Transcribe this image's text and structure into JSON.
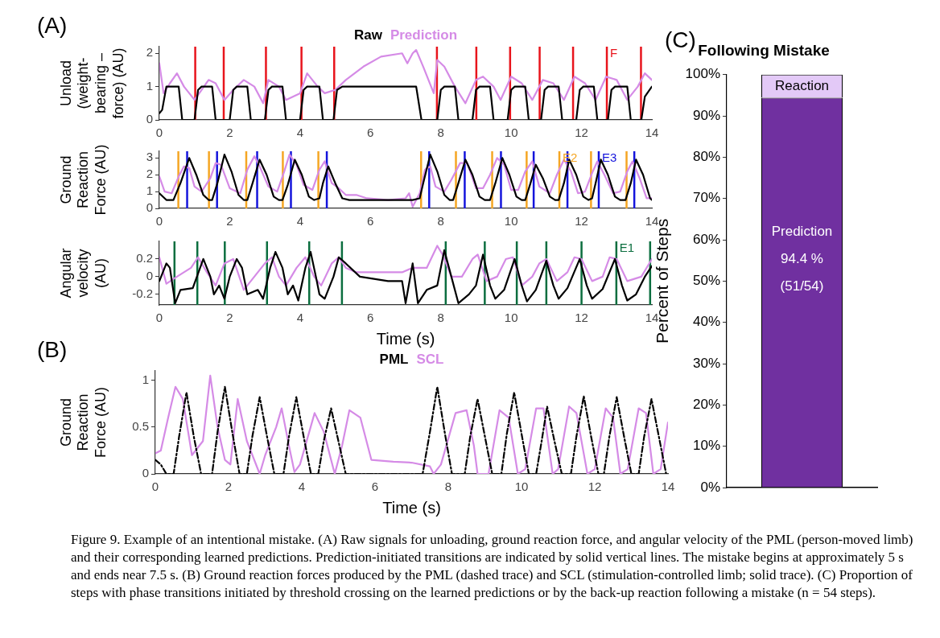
{
  "chart_data": [
    {
      "type": "line",
      "ylabel": "Unload (weight-bearing – force) (AU)",
      "xlim": [
        0,
        14
      ],
      "xticks": [
        0,
        2,
        4,
        6,
        8,
        10,
        12,
        14
      ],
      "ylim": [
        0,
        2.2
      ],
      "yticks": [
        0,
        1,
        2
      ],
      "legend": "top",
      "annotations": [
        "(A)",
        "F"
      ],
      "series": [
        {
          "name": "Raw",
          "color": "#000000",
          "x": [
            0,
            0.08,
            0.2,
            0.55,
            0.65,
            1.0,
            1.1,
            1.2,
            1.5,
            1.6,
            2.0,
            2.1,
            2.2,
            2.5,
            2.6,
            3.0,
            3.1,
            3.2,
            3.5,
            3.6,
            4.0,
            4.1,
            4.2,
            4.55,
            4.65,
            4.95,
            5.05,
            5.2,
            7.3,
            7.45,
            7.9,
            8.0,
            8.1,
            8.4,
            8.5,
            8.9,
            9.0,
            9.1,
            9.4,
            9.5,
            9.9,
            10.0,
            10.1,
            10.4,
            10.5,
            10.85,
            10.95,
            11.05,
            11.35,
            11.45,
            11.85,
            11.95,
            12.05,
            12.35,
            12.45,
            12.75,
            12.85,
            12.95,
            13.3,
            13.4,
            13.7,
            13.8,
            14
          ],
          "values": [
            0.2,
            0.3,
            1,
            1,
            0,
            0,
            0.9,
            1,
            1,
            0,
            0,
            0.9,
            1,
            1,
            0,
            0,
            0.9,
            1,
            1,
            0,
            0,
            0.9,
            1,
            1,
            0,
            0,
            0.9,
            1,
            1,
            0,
            0,
            0.9,
            1,
            1,
            0,
            0,
            0.9,
            1,
            1,
            0,
            0,
            0.9,
            1,
            1,
            0,
            0,
            0.9,
            1,
            1,
            0,
            0,
            0.9,
            1,
            1,
            0,
            0,
            0.9,
            1,
            1,
            0,
            0,
            0.7,
            1
          ]
        },
        {
          "name": "Prediction",
          "color": "#d58be6",
          "x": [
            0,
            0.12,
            0.3,
            0.5,
            0.7,
            1.0,
            1.2,
            1.4,
            1.6,
            1.85,
            2.1,
            2.4,
            2.7,
            2.95,
            3.1,
            3.4,
            3.6,
            4.0,
            4.2,
            4.5,
            4.7,
            5.0,
            5.3,
            5.8,
            6.3,
            6.9,
            7.05,
            7.2,
            7.3,
            7.5,
            7.8,
            7.9,
            8.1,
            8.4,
            8.7,
            9.0,
            9.2,
            9.5,
            9.7,
            10.0,
            10.3,
            10.6,
            10.9,
            11.2,
            11.5,
            11.8,
            12.1,
            12.4,
            12.7,
            13.0,
            13.3,
            13.6,
            13.8,
            14
          ],
          "values": [
            1.7,
            0.8,
            1.1,
            1.4,
            1.0,
            0.6,
            0.9,
            1.2,
            1.1,
            0.6,
            0.9,
            1.2,
            1.0,
            0.5,
            1.2,
            1.0,
            0.6,
            0.8,
            1.4,
            1.0,
            0.8,
            0.9,
            1.2,
            1.6,
            1.9,
            2.0,
            1.7,
            2.0,
            2.1,
            1.6,
            0.8,
            1.8,
            1.6,
            1.0,
            0.5,
            1.2,
            1.3,
            1.0,
            0.6,
            1.3,
            1.1,
            0.6,
            1.2,
            1.1,
            0.6,
            1.3,
            1.1,
            0.6,
            1.3,
            1.2,
            0.6,
            1.0,
            1.4,
            1.2
          ]
        }
      ],
      "ref_lines": [
        {
          "axis": "x",
          "value": 1.02,
          "color": "#e8141c"
        },
        {
          "axis": "x",
          "value": 1.83,
          "color": "#e8141c"
        },
        {
          "axis": "x",
          "value": 3.03,
          "color": "#e8141c"
        },
        {
          "axis": "x",
          "value": 4.04,
          "color": "#e8141c"
        },
        {
          "axis": "x",
          "value": 4.97,
          "color": "#e8141c"
        },
        {
          "axis": "x",
          "value": 7.89,
          "color": "#e8141c"
        },
        {
          "axis": "x",
          "value": 9.01,
          "color": "#e8141c"
        },
        {
          "axis": "x",
          "value": 9.97,
          "color": "#e8141c"
        },
        {
          "axis": "x",
          "value": 10.81,
          "color": "#e8141c"
        },
        {
          "axis": "x",
          "value": 11.76,
          "color": "#e8141c"
        },
        {
          "axis": "x",
          "value": 12.72,
          "color": "#e8141c"
        },
        {
          "axis": "x",
          "value": 13.69,
          "color": "#e8141c"
        }
      ]
    },
    {
      "type": "line",
      "ylabel": "Ground Reaction Force (AU)",
      "xlim": [
        0,
        14
      ],
      "xticks": [
        0,
        2,
        4,
        6,
        8,
        10,
        12,
        14
      ],
      "ylim": [
        0,
        3.4
      ],
      "yticks": [
        0,
        1,
        2,
        3
      ],
      "annotations": [
        "E2",
        "E3"
      ],
      "series": [
        {
          "color": "#000000",
          "x": [
            0,
            0.2,
            0.4,
            0.6,
            0.85,
            1.05,
            1.25,
            1.4,
            1.5,
            1.65,
            1.85,
            2.05,
            2.25,
            2.4,
            2.5,
            2.65,
            2.85,
            3.05,
            3.25,
            3.4,
            3.5,
            3.65,
            3.85,
            4.05,
            4.25,
            4.4,
            4.55,
            4.65,
            4.8,
            5.0,
            5.2,
            5.4,
            7.2,
            7.4,
            7.5,
            7.7,
            7.9,
            8.1,
            8.25,
            8.35,
            8.5,
            8.7,
            8.9,
            9.1,
            9.25,
            9.4,
            9.55,
            9.75,
            9.95,
            10.15,
            10.3,
            10.4,
            10.55,
            10.7,
            10.9,
            11.1,
            11.25,
            11.35,
            11.5,
            11.65,
            11.85,
            12.05,
            12.2,
            12.3,
            12.4,
            12.55,
            12.75,
            12.95,
            13.1,
            13.25,
            13.4,
            13.55,
            13.75,
            13.95,
            14
          ],
          "values": [
            0.9,
            0.5,
            0.5,
            1.5,
            3.0,
            2.0,
            0.8,
            0.5,
            0.5,
            1.5,
            3.2,
            2.2,
            0.8,
            0.5,
            0.5,
            1.5,
            2.9,
            2.0,
            0.7,
            0.5,
            0.5,
            1.4,
            2.9,
            2.0,
            0.7,
            0.5,
            0.6,
            1.5,
            2.5,
            1.5,
            0.6,
            0.5,
            0.5,
            0.6,
            1.5,
            3.2,
            2.2,
            0.8,
            0.5,
            0.5,
            1.5,
            2.9,
            2.0,
            0.7,
            0.5,
            0.5,
            1.5,
            3.0,
            2.0,
            0.7,
            0.5,
            0.5,
            1.5,
            2.6,
            1.8,
            0.7,
            0.5,
            0.5,
            1.5,
            2.9,
            2.0,
            0.7,
            0.5,
            0.6,
            1.5,
            2.9,
            2.0,
            0.7,
            0.5,
            0.5,
            1.5,
            2.9,
            2.0,
            0.6,
            0.5
          ]
        },
        {
          "color": "#d58be6",
          "x": [
            0,
            0.15,
            0.35,
            0.55,
            0.7,
            0.85,
            1.0,
            1.2,
            1.45,
            1.6,
            1.75,
            2.0,
            2.3,
            2.5,
            2.7,
            2.85,
            3.1,
            3.35,
            3.55,
            3.7,
            3.9,
            4.1,
            4.35,
            4.55,
            4.7,
            4.9,
            5.1,
            5.3,
            5.6,
            5.9,
            6.5,
            7.0,
            7.1,
            7.2,
            7.4,
            7.55,
            7.7,
            7.85,
            8.1,
            8.3,
            8.55,
            8.75,
            9.0,
            9.2,
            9.4,
            9.6,
            9.8,
            10.0,
            10.2,
            10.4,
            10.6,
            10.8,
            11.1,
            11.3,
            11.5,
            11.7,
            11.9,
            12.1,
            12.3,
            12.45,
            12.65,
            12.9,
            13.1,
            13.3,
            13.45,
            13.65,
            13.85,
            14
          ],
          "values": [
            1.9,
            1.0,
            0.9,
            1.9,
            2.5,
            2.4,
            1.3,
            1.0,
            1.8,
            2.7,
            2.6,
            1.2,
            0.9,
            2.3,
            3.1,
            2.5,
            1.3,
            1.0,
            2.2,
            3.2,
            2.6,
            1.4,
            1.1,
            2.3,
            2.8,
            1.5,
            1.2,
            0.8,
            0.8,
            0.6,
            0.5,
            0.6,
            0.9,
            0.1,
            0.9,
            2.3,
            2.5,
            1.3,
            1.0,
            1.7,
            2.7,
            2.7,
            1.2,
            1.2,
            2.0,
            3.0,
            2.6,
            1.1,
            1.1,
            2.2,
            2.8,
            1.3,
            0.9,
            2.0,
            2.9,
            2.2,
            0.9,
            1.0,
            2.1,
            2.8,
            2.0,
            0.9,
            1.0,
            2.2,
            2.8,
            1.8,
            0.6,
            0.6
          ]
        }
      ],
      "ref_lines": [
        {
          "axis": "x",
          "value": 0.54,
          "color": "#f5a623"
        },
        {
          "axis": "x",
          "value": 1.41,
          "color": "#f5a623"
        },
        {
          "axis": "x",
          "value": 2.47,
          "color": "#f5a623"
        },
        {
          "axis": "x",
          "value": 3.51,
          "color": "#f5a623"
        },
        {
          "axis": "x",
          "value": 4.52,
          "color": "#f5a623"
        },
        {
          "axis": "x",
          "value": 7.44,
          "color": "#f5a623"
        },
        {
          "axis": "x",
          "value": 8.43,
          "color": "#f5a623"
        },
        {
          "axis": "x",
          "value": 9.46,
          "color": "#f5a623"
        },
        {
          "axis": "x",
          "value": 10.44,
          "color": "#f5a623"
        },
        {
          "axis": "x",
          "value": 11.37,
          "color": "#f5a623"
        },
        {
          "axis": "x",
          "value": 12.27,
          "color": "#f5a623"
        },
        {
          "axis": "x",
          "value": 13.28,
          "color": "#f5a623"
        },
        {
          "axis": "x",
          "value": 0.79,
          "color": "#1414dc"
        },
        {
          "axis": "x",
          "value": 1.64,
          "color": "#1414dc"
        },
        {
          "axis": "x",
          "value": 2.78,
          "color": "#1414dc"
        },
        {
          "axis": "x",
          "value": 3.74,
          "color": "#1414dc"
        },
        {
          "axis": "x",
          "value": 4.76,
          "color": "#1414dc"
        },
        {
          "axis": "x",
          "value": 7.67,
          "color": "#1414dc"
        },
        {
          "axis": "x",
          "value": 8.68,
          "color": "#1414dc"
        },
        {
          "axis": "x",
          "value": 9.71,
          "color": "#1414dc"
        },
        {
          "axis": "x",
          "value": 10.64,
          "color": "#1414dc"
        },
        {
          "axis": "x",
          "value": 11.6,
          "color": "#1414dc"
        },
        {
          "axis": "x",
          "value": 12.49,
          "color": "#1414dc"
        },
        {
          "axis": "x",
          "value": 13.5,
          "color": "#1414dc"
        }
      ]
    },
    {
      "type": "line",
      "ylabel": "Angular velocity (AU)",
      "xlabel": "Time (s)",
      "xlim": [
        0,
        14
      ],
      "xticks": [
        0,
        2,
        4,
        6,
        8,
        10,
        12,
        14
      ],
      "ylim": [
        -0.32,
        0.4
      ],
      "yticks": [
        -0.2,
        0,
        0.2
      ],
      "annotations": [
        "E1"
      ],
      "series": [
        {
          "color": "#000000",
          "x": [
            0,
            0.2,
            0.3,
            0.45,
            0.6,
            0.95,
            1.25,
            1.45,
            1.55,
            1.7,
            1.85,
            2.0,
            2.2,
            2.35,
            2.5,
            2.8,
            2.95,
            3.15,
            3.3,
            3.5,
            3.65,
            3.8,
            3.95,
            4.15,
            4.3,
            4.45,
            4.55,
            4.7,
            4.95,
            5.1,
            5.3,
            5.7,
            6.5,
            6.9,
            7.0,
            7.2,
            7.35,
            7.6,
            7.9,
            8.1,
            8.3,
            8.5,
            8.8,
            9.0,
            9.2,
            9.4,
            9.55,
            9.8,
            10.1,
            10.3,
            10.45,
            10.7,
            11.0,
            11.2,
            11.35,
            11.6,
            11.95,
            12.15,
            12.3,
            12.6,
            12.95,
            13.15,
            13.3,
            13.55,
            13.8,
            14
          ],
          "values": [
            -0.05,
            0.15,
            0.1,
            -0.3,
            -0.15,
            -0.13,
            0.2,
            0.0,
            -0.2,
            -0.1,
            -0.25,
            0.0,
            0.2,
            0.1,
            -0.2,
            -0.15,
            -0.25,
            0.1,
            0.28,
            0.1,
            -0.2,
            -0.1,
            -0.27,
            0.1,
            0.28,
            0.0,
            -0.2,
            -0.25,
            0.0,
            0.22,
            0.15,
            0.0,
            -0.05,
            -0.05,
            -0.3,
            0.15,
            -0.3,
            -0.15,
            -0.1,
            0.3,
            0.0,
            -0.3,
            -0.2,
            -0.1,
            0.25,
            -0.1,
            -0.25,
            -0.15,
            0.2,
            -0.1,
            -0.28,
            -0.15,
            0.18,
            -0.1,
            -0.25,
            -0.13,
            0.2,
            -0.1,
            -0.25,
            -0.14,
            0.2,
            -0.1,
            -0.27,
            -0.2,
            0.0,
            0.12
          ]
        },
        {
          "color": "#d58be6",
          "x": [
            0,
            0.2,
            0.5,
            0.9,
            1.1,
            1.35,
            1.6,
            1.85,
            2.1,
            2.4,
            2.7,
            3.0,
            3.2,
            3.4,
            3.6,
            3.9,
            4.15,
            4.4,
            4.6,
            4.9,
            5.1,
            5.3,
            5.6,
            6.9,
            7.2,
            7.6,
            7.9,
            8.05,
            8.3,
            8.6,
            8.9,
            9.05,
            9.3,
            9.6,
            9.85,
            10.05,
            10.3,
            10.6,
            10.8,
            11.0,
            11.3,
            11.6,
            11.8,
            12.0,
            12.3,
            12.6,
            12.8,
            13.0,
            13.3,
            13.7,
            14
          ],
          "values": [
            0.22,
            -0.08,
            0.0,
            0.1,
            0.22,
            0.05,
            -0.1,
            0.15,
            0.2,
            -0.15,
            0.0,
            0.15,
            0.22,
            0.0,
            -0.1,
            0.1,
            0.22,
            0.0,
            -0.1,
            0.15,
            0.22,
            0.1,
            0.05,
            0.05,
            0.1,
            0.1,
            0.35,
            0.25,
            0.0,
            0.0,
            0.2,
            0.25,
            -0.05,
            0.0,
            0.2,
            0.22,
            -0.1,
            0.0,
            0.15,
            0.2,
            -0.05,
            0.05,
            0.22,
            0.2,
            -0.05,
            0.0,
            0.22,
            0.2,
            -0.05,
            0.0,
            0.2
          ]
        }
      ],
      "ref_lines": [
        {
          "axis": "x",
          "value": 0.43,
          "color": "#0b6e3f"
        },
        {
          "axis": "x",
          "value": 1.08,
          "color": "#0b6e3f"
        },
        {
          "axis": "x",
          "value": 1.86,
          "color": "#0b6e3f"
        },
        {
          "axis": "x",
          "value": 3.06,
          "color": "#0b6e3f"
        },
        {
          "axis": "x",
          "value": 4.26,
          "color": "#0b6e3f"
        },
        {
          "axis": "x",
          "value": 5.19,
          "color": "#0b6e3f"
        },
        {
          "axis": "x",
          "value": 8.14,
          "color": "#0b6e3f"
        },
        {
          "axis": "x",
          "value": 9.25,
          "color": "#0b6e3f"
        },
        {
          "axis": "x",
          "value": 10.16,
          "color": "#0b6e3f"
        },
        {
          "axis": "x",
          "value": 11.0,
          "color": "#0b6e3f"
        },
        {
          "axis": "x",
          "value": 12.0,
          "color": "#0b6e3f"
        },
        {
          "axis": "x",
          "value": 12.99,
          "color": "#0b6e3f"
        },
        {
          "axis": "x",
          "value": 13.95,
          "color": "#0b6e3f"
        }
      ]
    },
    {
      "type": "line",
      "ylabel": "Ground Reaction Force (AU)",
      "xlabel": "Time (s)",
      "xlim": [
        0,
        14
      ],
      "xticks": [
        0,
        2,
        4,
        6,
        8,
        10,
        12,
        14
      ],
      "ylim": [
        0,
        1.1
      ],
      "yticks": [
        0,
        0.5,
        1
      ],
      "legend": "top",
      "annotations": [
        "(B)"
      ],
      "series": [
        {
          "name": "PML",
          "color": "#000000",
          "line_style": "dashed",
          "x": [
            0,
            0.15,
            0.3,
            0.5,
            0.65,
            0.85,
            1.05,
            1.25,
            1.55,
            1.7,
            1.9,
            2.1,
            2.3,
            2.5,
            2.65,
            2.85,
            3.05,
            3.25,
            3.5,
            3.65,
            3.85,
            4.05,
            4.25,
            4.45,
            4.6,
            4.8,
            5.0,
            5.2,
            7.3,
            7.5,
            7.7,
            7.9,
            8.1,
            8.45,
            8.6,
            8.8,
            9.0,
            9.2,
            9.45,
            9.6,
            9.8,
            10.0,
            10.2,
            10.4,
            10.55,
            10.7,
            10.9,
            11.1,
            11.35,
            11.5,
            11.7,
            11.9,
            12.1,
            12.25,
            12.4,
            12.6,
            12.8,
            13.0,
            13.2,
            13.35,
            13.55,
            13.75,
            13.95,
            14
          ],
          "values": [
            0.15,
            0.1,
            0.0,
            0.0,
            0.4,
            0.87,
            0.4,
            0.0,
            0.0,
            0.45,
            0.93,
            0.45,
            0.0,
            0.0,
            0.4,
            0.82,
            0.4,
            0.0,
            0.0,
            0.4,
            0.82,
            0.4,
            0.0,
            0.0,
            0.35,
            0.7,
            0.35,
            0.0,
            0.0,
            0.45,
            0.93,
            0.45,
            0.0,
            0.0,
            0.4,
            0.8,
            0.4,
            0.0,
            0.0,
            0.43,
            0.87,
            0.43,
            0.0,
            0.0,
            0.35,
            0.72,
            0.35,
            0.0,
            0.0,
            0.4,
            0.83,
            0.4,
            0.0,
            0.0,
            0.4,
            0.82,
            0.4,
            0.0,
            0.0,
            0.4,
            0.8,
            0.4,
            0.0,
            0.0
          ]
        },
        {
          "name": "SCL",
          "color": "#d58be6",
          "line_style": "solid",
          "x": [
            0,
            0.15,
            0.35,
            0.55,
            0.75,
            1.0,
            1.3,
            1.5,
            1.7,
            1.9,
            2.05,
            2.25,
            2.5,
            2.85,
            3.0,
            3.3,
            3.45,
            3.65,
            3.8,
            3.95,
            4.35,
            4.6,
            4.9,
            5.1,
            5.3,
            5.6,
            5.9,
            6.5,
            7.0,
            7.5,
            7.6,
            7.8,
            8.2,
            8.5,
            8.7,
            8.8,
            9.1,
            9.4,
            9.65,
            9.9,
            10.1,
            10.4,
            10.6,
            10.85,
            11.0,
            11.3,
            11.5,
            11.8,
            12.0,
            12.3,
            12.5,
            12.7,
            12.9,
            13.2,
            13.4,
            13.6,
            13.8,
            14
          ],
          "values": [
            0.22,
            0.25,
            0.6,
            0.93,
            0.8,
            0.2,
            0.35,
            1.05,
            0.5,
            0.15,
            0.1,
            0.8,
            0.35,
            0.0,
            0.2,
            0.5,
            0.7,
            0.3,
            0.02,
            0.1,
            0.65,
            0.45,
            0.0,
            0.3,
            0.68,
            0.6,
            0.15,
            0.13,
            0.12,
            0.08,
            0.0,
            0.1,
            0.65,
            0.68,
            0.3,
            0.0,
            0.0,
            0.68,
            0.6,
            0.0,
            0.05,
            0.7,
            0.7,
            0.0,
            0.05,
            0.72,
            0.65,
            0.0,
            0.05,
            0.7,
            0.6,
            0.0,
            0.05,
            0.7,
            0.65,
            0.0,
            0.05,
            0.55
          ]
        }
      ]
    },
    {
      "type": "bar",
      "stacked": true,
      "title": "Following Mistake",
      "ylabel": "Percent of Steps",
      "categories": [
        null
      ],
      "ylim": [
        0,
        100
      ],
      "yticks": [
        {
          "value": 0,
          "label": "0%"
        },
        {
          "value": 10,
          "label": "10%"
        },
        {
          "value": 20,
          "label": "20%"
        },
        {
          "value": 30,
          "label": "30%"
        },
        {
          "value": 40,
          "label": "40%"
        },
        {
          "value": 50,
          "label": "50%"
        },
        {
          "value": 60,
          "label": "60%"
        },
        {
          "value": 70,
          "label": "70%"
        },
        {
          "value": 80,
          "label": "80%"
        },
        {
          "value": 90,
          "label": "90%"
        },
        {
          "value": 100,
          "label": "100%"
        }
      ],
      "annotations": [
        "(C)",
        "(51/54)",
        "Figure 9. Example of an intentional mistake. (A) Raw signals for unloading, ground reaction force, and angular velocity of the PML (person-moved limb) and their corresponding learned predictions. Prediction-initiated transitions are indicated by solid vertical lines. The mistake begins at approximately 5 s and ends near 7.5 s. (B) Ground reaction forces produced by the PML (dashed trace) and SCL (stimulation-controlled limb; solid trace). (C) Proportion of steps with phase transitions initiated by threshold crossing on the learned predictions or by the back-up reaction following a mistake (n = 54 steps)."
      ],
      "series": [
        {
          "name": "Prediction",
          "color": "#7030a0",
          "values": [
            94.4
          ],
          "value_labels": [
            "94.4 %"
          ]
        },
        {
          "name": "Reaction",
          "color": "#e3c9f7",
          "values": [
            5.6
          ]
        }
      ]
    }
  ]
}
